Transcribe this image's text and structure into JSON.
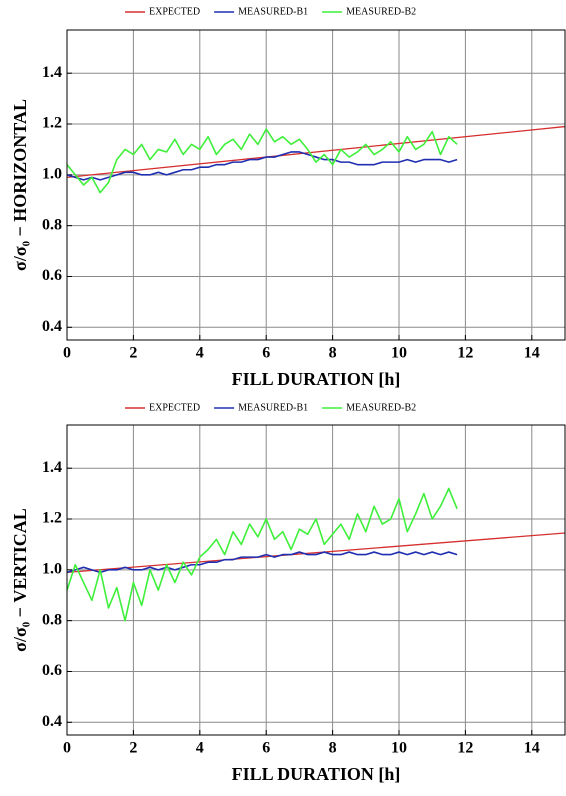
{
  "chart_data": [
    {
      "type": "line",
      "xlabel": "FILL DURATION [h]",
      "ylabel": "σ/σ₀ − HORIZONTAL",
      "xlim": [
        0,
        15
      ],
      "ylim": [
        0.35,
        1.57
      ],
      "xticks": [
        0,
        2,
        4,
        6,
        8,
        10,
        12,
        14
      ],
      "yticks": [
        0.4,
        0.6,
        0.8,
        {
          "value": 1,
          "label": "1.0"
        },
        1.2,
        1.4
      ],
      "grid": true,
      "legend": "top",
      "series": [
        {
          "name": "EXPECTED",
          "color": "#d62f2f",
          "x": [
            0,
            15
          ],
          "values": [
            0.99,
            1.19
          ]
        },
        {
          "name": "MEASURED-B1",
          "color": "#1f2fb0",
          "x": [
            0,
            0.25,
            0.5,
            0.75,
            1,
            1.25,
            1.5,
            1.75,
            2,
            2.25,
            2.5,
            2.75,
            3,
            3.25,
            3.5,
            3.75,
            4,
            4.25,
            4.5,
            4.75,
            5,
            5.25,
            5.5,
            5.75,
            6,
            6.25,
            6.5,
            6.75,
            7,
            7.25,
            7.5,
            7.75,
            8,
            8.25,
            8.5,
            8.75,
            9,
            9.25,
            9.5,
            9.75,
            10,
            10.25,
            10.5,
            10.75,
            11,
            11.25,
            11.5,
            11.75
          ],
          "values": [
            1.0,
            0.99,
            0.98,
            0.99,
            0.98,
            0.99,
            1.0,
            1.01,
            1.01,
            1.0,
            1.0,
            1.01,
            1.0,
            1.01,
            1.02,
            1.02,
            1.03,
            1.03,
            1.04,
            1.04,
            1.05,
            1.05,
            1.06,
            1.06,
            1.07,
            1.07,
            1.08,
            1.09,
            1.09,
            1.08,
            1.07,
            1.06,
            1.06,
            1.05,
            1.05,
            1.04,
            1.04,
            1.04,
            1.05,
            1.05,
            1.05,
            1.06,
            1.05,
            1.06,
            1.06,
            1.06,
            1.05,
            1.06
          ]
        },
        {
          "name": "MEASURED-B2",
          "color": "#3ef03a",
          "x": [
            0,
            0.25,
            0.5,
            0.75,
            1,
            1.25,
            1.5,
            1.75,
            2,
            2.25,
            2.5,
            2.75,
            3,
            3.25,
            3.5,
            3.75,
            4,
            4.25,
            4.5,
            4.75,
            5,
            5.25,
            5.5,
            5.75,
            6,
            6.25,
            6.5,
            6.75,
            7,
            7.25,
            7.5,
            7.75,
            8,
            8.25,
            8.5,
            8.75,
            9,
            9.25,
            9.5,
            9.75,
            10,
            10.25,
            10.5,
            10.75,
            11,
            11.25,
            11.5,
            11.75
          ],
          "values": [
            1.04,
            1.0,
            0.96,
            0.99,
            0.93,
            0.97,
            1.06,
            1.1,
            1.08,
            1.12,
            1.06,
            1.1,
            1.09,
            1.14,
            1.08,
            1.12,
            1.1,
            1.15,
            1.08,
            1.12,
            1.14,
            1.1,
            1.16,
            1.12,
            1.18,
            1.13,
            1.15,
            1.12,
            1.14,
            1.1,
            1.05,
            1.08,
            1.04,
            1.1,
            1.07,
            1.09,
            1.12,
            1.08,
            1.1,
            1.13,
            1.09,
            1.15,
            1.1,
            1.12,
            1.17,
            1.08,
            1.15,
            1.12
          ]
        }
      ]
    },
    {
      "type": "line",
      "xlabel": "FILL DURATION [h]",
      "ylabel": "σ/σ₀ − VERTICAL",
      "xlim": [
        0,
        15
      ],
      "ylim": [
        0.35,
        1.57
      ],
      "xticks": [
        0,
        2,
        4,
        6,
        8,
        10,
        12,
        14
      ],
      "yticks": [
        0.4,
        0.6,
        0.8,
        {
          "value": 1,
          "label": "1.0"
        },
        1.2,
        1.4
      ],
      "grid": true,
      "legend": "top",
      "series": [
        {
          "name": "EXPECTED",
          "color": "#d62f2f",
          "x": [
            0,
            15
          ],
          "values": [
            0.99,
            1.145
          ]
        },
        {
          "name": "MEASURED-B1",
          "color": "#1f2fb0",
          "x": [
            0,
            0.25,
            0.5,
            0.75,
            1,
            1.25,
            1.5,
            1.75,
            2,
            2.25,
            2.5,
            2.75,
            3,
            3.25,
            3.5,
            3.75,
            4,
            4.25,
            4.5,
            4.75,
            5,
            5.25,
            5.5,
            5.75,
            6,
            6.25,
            6.5,
            6.75,
            7,
            7.25,
            7.5,
            7.75,
            8,
            8.25,
            8.5,
            8.75,
            9,
            9.25,
            9.5,
            9.75,
            10,
            10.25,
            10.5,
            10.75,
            11,
            11.25,
            11.5,
            11.75
          ],
          "values": [
            0.99,
            1.0,
            1.01,
            1.0,
            0.99,
            1.0,
            1.0,
            1.01,
            1.0,
            1.0,
            1.01,
            1.0,
            1.01,
            1.0,
            1.01,
            1.02,
            1.02,
            1.03,
            1.03,
            1.04,
            1.04,
            1.05,
            1.05,
            1.05,
            1.06,
            1.05,
            1.06,
            1.06,
            1.07,
            1.06,
            1.06,
            1.07,
            1.06,
            1.06,
            1.07,
            1.06,
            1.06,
            1.07,
            1.06,
            1.06,
            1.07,
            1.06,
            1.07,
            1.06,
            1.07,
            1.06,
            1.07,
            1.06
          ]
        },
        {
          "name": "MEASURED-B2",
          "color": "#3ef03a",
          "x": [
            0,
            0.25,
            0.5,
            0.75,
            1,
            1.25,
            1.5,
            1.75,
            2,
            2.25,
            2.5,
            2.75,
            3,
            3.25,
            3.5,
            3.75,
            4,
            4.25,
            4.5,
            4.75,
            5,
            5.25,
            5.5,
            5.75,
            6,
            6.25,
            6.5,
            6.75,
            7,
            7.25,
            7.5,
            7.75,
            8,
            8.25,
            8.5,
            8.75,
            9,
            9.25,
            9.5,
            9.75,
            10,
            10.25,
            10.5,
            10.75,
            11,
            11.25,
            11.5,
            11.75
          ],
          "values": [
            0.92,
            1.02,
            0.95,
            0.88,
            1.0,
            0.85,
            0.93,
            0.8,
            0.95,
            0.86,
            1.0,
            0.92,
            1.02,
            0.95,
            1.03,
            0.98,
            1.05,
            1.08,
            1.12,
            1.06,
            1.15,
            1.1,
            1.18,
            1.13,
            1.2,
            1.12,
            1.15,
            1.08,
            1.16,
            1.14,
            1.2,
            1.1,
            1.14,
            1.18,
            1.12,
            1.22,
            1.15,
            1.25,
            1.18,
            1.2,
            1.28,
            1.15,
            1.22,
            1.3,
            1.2,
            1.25,
            1.32,
            1.24
          ]
        }
      ]
    }
  ]
}
